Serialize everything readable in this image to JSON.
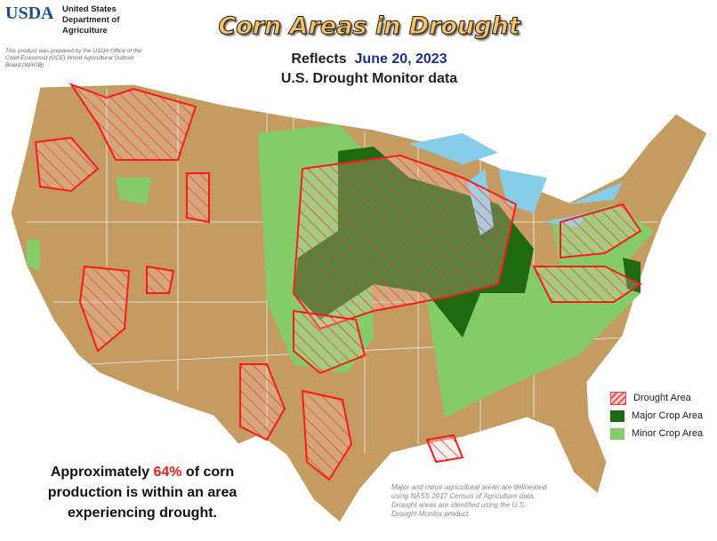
{
  "header": {
    "logo": "USDA",
    "agency": "United States Department of Agriculture",
    "note": "This product was prepared by the USDA Office of the Chief Economist (OCE) World Agricultural Outlook Board (WAOB)"
  },
  "title": "Corn Areas in Drought",
  "subtitle": {
    "prefix": "Reflects",
    "date": "June 20, 2023",
    "source": "U.S. Drought Monitor data"
  },
  "legend": {
    "items": [
      "Drought Area",
      "Major Crop Area",
      "Minor Crop Area"
    ]
  },
  "summary": {
    "before": "Approximately",
    "highlight": "64%",
    "after": "of corn production is within an area experiencing drought."
  },
  "footnote": "Major and minor agricultural areas are delineated using NASS 2017 Census of Agriculture data.  Drought areas are identified using the U.S. Drought Monitor product."
}
